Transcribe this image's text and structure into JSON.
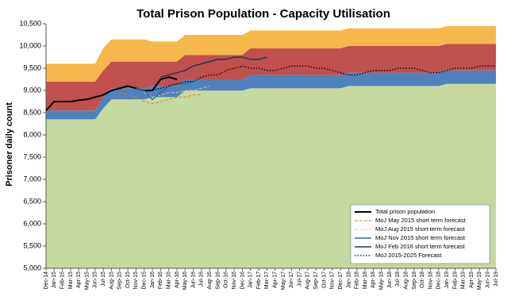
{
  "chart_data": {
    "type": "area-line",
    "title": "Total Prison Population - Capacity Utilisation",
    "y_label": "Prisoner daily count",
    "ylim": [
      5000,
      10500
    ],
    "yticks": [
      {
        "value": 5000,
        "label": "5,000"
      },
      {
        "value": 5500,
        "label": "5,500"
      },
      {
        "value": 6000,
        "label": "6,000"
      },
      {
        "value": 6500,
        "label": "6,500"
      },
      {
        "value": 7000,
        "label": "7,000"
      },
      {
        "value": 7500,
        "label": "7,500"
      },
      {
        "value": 8000,
        "label": "8,000"
      },
      {
        "value": 8500,
        "label": "8,500"
      },
      {
        "value": 9000,
        "label": "9,000"
      },
      {
        "value": 9500,
        "label": "9,500"
      },
      {
        "value": 10000,
        "label": "10,000"
      },
      {
        "value": 10500,
        "label": "10,500"
      }
    ],
    "categories": [
      "Dec-14",
      "Jan-15",
      "Feb-15",
      "Mar-15",
      "Apr-15",
      "May-15",
      "Jun-15",
      "Jul-15",
      "Aug-15",
      "Sep-15",
      "Oct-15",
      "Nov-15",
      "Dec-15",
      "Jan-16",
      "Feb-16",
      "Mar-16",
      "Apr-16",
      "May-16",
      "Jun-16",
      "Jul-16",
      "Aug-16",
      "Sep-16",
      "Oct-16",
      "Nov-16",
      "Dec-16",
      "Jan-17",
      "Feb-17",
      "Mar-17",
      "Apr-17",
      "May-17",
      "Jun-17",
      "Jul-17",
      "Aug-17",
      "Sep-17",
      "Oct-17",
      "Nov-17",
      "Dec-17",
      "Jan-18",
      "Feb-18",
      "Mar-18",
      "Apr-18",
      "May-18",
      "Jun-18",
      "Jul-18",
      "Aug-18",
      "Sep-18",
      "Oct-18",
      "Nov-18",
      "Dec-18",
      "Jan-19",
      "Feb-19",
      "Mar-19",
      "Apr-19",
      "May-19",
      "Jun-19",
      "Jul-19"
    ],
    "areas": [
      {
        "color": "#c6d9a0",
        "values": [
          8350,
          8350,
          8350,
          8350,
          8350,
          8350,
          8350,
          8600,
          8800,
          8800,
          8800,
          8800,
          8800,
          8850,
          8850,
          8850,
          8850,
          9000,
          9000,
          9000,
          9000,
          9000,
          9000,
          9000,
          9000,
          9050,
          9050,
          9050,
          9050,
          9050,
          9050,
          9050,
          9050,
          9050,
          9050,
          9050,
          9050,
          9100,
          9100,
          9100,
          9100,
          9100,
          9100,
          9100,
          9100,
          9100,
          9100,
          9100,
          9100,
          9150,
          9150,
          9150,
          9150,
          9150,
          9150,
          9150
        ]
      },
      {
        "color": "#4f81bd",
        "values": [
          200,
          200,
          200,
          200,
          200,
          200,
          200,
          250,
          250,
          250,
          250,
          250,
          250,
          250,
          250,
          250,
          250,
          250,
          250,
          250,
          250,
          250,
          250,
          250,
          250,
          300,
          300,
          300,
          300,
          300,
          300,
          300,
          300,
          300,
          300,
          300,
          300,
          300,
          300,
          300,
          300,
          300,
          300,
          300,
          300,
          300,
          300,
          300,
          300,
          300,
          300,
          300,
          300,
          300,
          300,
          300
        ]
      },
      {
        "color": "#c0504d",
        "values": [
          650,
          650,
          650,
          650,
          650,
          650,
          650,
          600,
          600,
          600,
          600,
          600,
          600,
          550,
          550,
          550,
          550,
          550,
          550,
          550,
          550,
          550,
          550,
          550,
          550,
          600,
          600,
          600,
          600,
          600,
          600,
          600,
          600,
          600,
          600,
          600,
          600,
          600,
          600,
          600,
          600,
          600,
          600,
          600,
          600,
          600,
          600,
          600,
          600,
          600,
          600,
          600,
          600,
          600,
          600,
          600
        ]
      },
      {
        "color": "#f6b84b",
        "values": [
          400,
          400,
          400,
          400,
          400,
          400,
          400,
          500,
          500,
          500,
          500,
          500,
          500,
          450,
          450,
          450,
          450,
          450,
          450,
          450,
          450,
          450,
          450,
          450,
          450,
          400,
          400,
          400,
          400,
          400,
          400,
          400,
          400,
          400,
          400,
          400,
          400,
          400,
          400,
          400,
          400,
          400,
          400,
          400,
          400,
          400,
          400,
          400,
          400,
          400,
          400,
          400,
          400,
          400,
          400,
          400
        ]
      }
    ],
    "series": [
      {
        "name": "Total prison population",
        "color": "#000000",
        "style": "solid",
        "width": 2,
        "values": [
          8550,
          8750,
          8750,
          8750,
          8780,
          8800,
          8850,
          8900,
          9000,
          9050,
          9100,
          9050,
          9000,
          9000,
          9250,
          9300,
          9250,
          null,
          null,
          null,
          null,
          null,
          null,
          null,
          null,
          null,
          null,
          null,
          null,
          null,
          null,
          null,
          null,
          null,
          null,
          null,
          null,
          null,
          null,
          null,
          null,
          null,
          null,
          null,
          null,
          null,
          null,
          null,
          null,
          null,
          null,
          null,
          null,
          null,
          null,
          null
        ]
      },
      {
        "name": "MoJ May 2015 short term forecast",
        "color": "#e07b20",
        "style": "dashed",
        "width": 1,
        "values": [
          null,
          null,
          null,
          null,
          null,
          null,
          null,
          null,
          null,
          8950,
          8900,
          8850,
          8750,
          8700,
          8750,
          8800,
          8850,
          8850,
          8900,
          8900,
          null,
          null,
          null,
          null,
          null,
          null,
          null,
          null,
          null,
          null,
          null,
          null,
          null,
          null,
          null,
          null,
          null,
          null,
          null,
          null,
          null,
          null,
          null,
          null,
          null,
          null,
          null,
          null,
          null,
          null,
          null,
          null,
          null,
          null,
          null,
          null
        ]
      },
      {
        "name": "MoJ Aug 2015 short term forecast",
        "color": "#d8c89a",
        "style": "dashed",
        "width": 1,
        "values": [
          null,
          null,
          null,
          null,
          null,
          null,
          null,
          null,
          null,
          null,
          null,
          null,
          8950,
          8850,
          8900,
          8950,
          8950,
          9000,
          9000,
          9050,
          9100,
          null,
          null,
          null,
          null,
          null,
          null,
          null,
          null,
          null,
          null,
          null,
          null,
          null,
          null,
          null,
          null,
          null,
          null,
          null,
          null,
          null,
          null,
          null,
          null,
          null,
          null,
          null,
          null,
          null,
          null,
          null,
          null,
          null,
          null,
          null
        ]
      },
      {
        "name": "MoJ Nov 2015 short term forecast",
        "color": "#2a6f97",
        "style": "solid",
        "width": 1.5,
        "values": [
          null,
          null,
          null,
          null,
          null,
          null,
          null,
          null,
          null,
          null,
          null,
          9050,
          9000,
          8800,
          8950,
          9100,
          9150,
          9150,
          9200,
          null,
          null,
          null,
          null,
          null,
          null,
          null,
          null,
          null,
          null,
          null,
          null,
          null,
          null,
          null,
          null,
          null,
          null,
          null,
          null,
          null,
          null,
          null,
          null,
          null,
          null,
          null,
          null,
          null,
          null,
          null,
          null,
          null,
          null,
          null,
          null,
          null
        ]
      },
      {
        "name": "MoJ Feb 2016 short term forecast",
        "color": "#1f3864",
        "style": "solid",
        "width": 1.5,
        "values": [
          null,
          null,
          null,
          null,
          null,
          null,
          null,
          null,
          null,
          null,
          null,
          null,
          null,
          null,
          9300,
          9350,
          9400,
          9450,
          9550,
          9600,
          9650,
          9700,
          9700,
          9750,
          9750,
          9700,
          9700,
          9750,
          null,
          null,
          null,
          null,
          null,
          null,
          null,
          null,
          null,
          null,
          null,
          null,
          null,
          null,
          null,
          null,
          null,
          null,
          null,
          null,
          null,
          null,
          null,
          null,
          null,
          null,
          null,
          null
        ]
      },
      {
        "name": "MoJ 2015-2025 Forecast",
        "color": "#000000",
        "style": "dotted",
        "width": 1.3,
        "values": [
          null,
          null,
          null,
          null,
          null,
          null,
          null,
          null,
          null,
          null,
          null,
          null,
          null,
          9000,
          9050,
          9100,
          9150,
          9200,
          9200,
          9300,
          9350,
          9350,
          9450,
          9500,
          9550,
          9500,
          9500,
          9450,
          9450,
          9500,
          9550,
          9550,
          9550,
          9500,
          9500,
          9450,
          9400,
          9350,
          9350,
          9400,
          9450,
          9450,
          9450,
          9500,
          9500,
          9500,
          9450,
          9400,
          9400,
          9450,
          9500,
          9500,
          9500,
          9550,
          9550,
          9550
        ]
      }
    ],
    "legend": "lower-right"
  }
}
